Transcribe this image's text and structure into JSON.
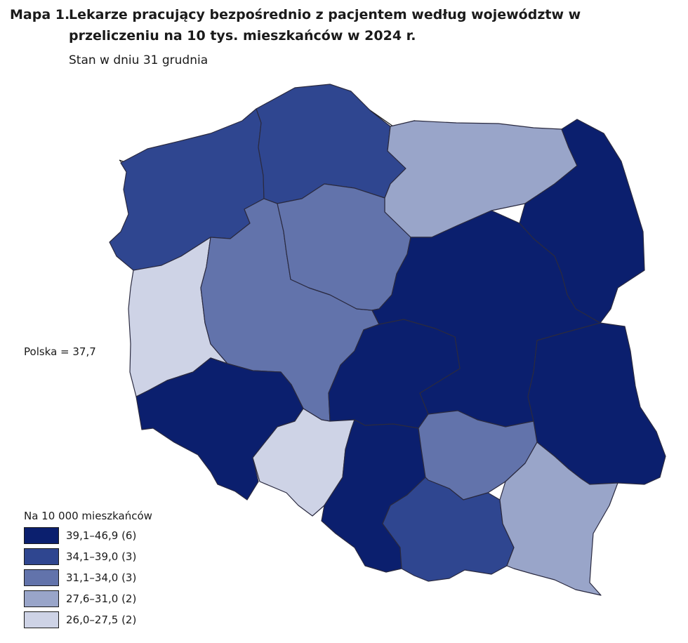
{
  "title": {
    "number": "Mapa 1.",
    "text": "Lekarze pracujący bezpośrednio z pacjentem według województw w przeliczeniu na 10 tys. mieszkańców w 2024 r."
  },
  "subtitle": "Stan w dniu 31 grudnia",
  "poland_label": "Polska = 37,7",
  "legend": {
    "title": "Na 10 000 mieszkańców",
    "items": [
      {
        "label": "39,1–46,9 (6)",
        "color": "#0b1f6e"
      },
      {
        "label": "34,1–39,0 (3)",
        "color": "#2f4690"
      },
      {
        "label": "31,1–34,0 (3)",
        "color": "#6273ab"
      },
      {
        "label": "27,6–31,0 (2)",
        "color": "#99a5c9"
      },
      {
        "label": "26,0–27,5 (2)",
        "color": "#ced3e6"
      }
    ]
  },
  "regions": [
    {
      "id": "zachodniopomorskie",
      "class": 1
    },
    {
      "id": "pomorskie",
      "class": 1
    },
    {
      "id": "warminsko-mazurskie",
      "class": 3
    },
    {
      "id": "podlaskie",
      "class": 0
    },
    {
      "id": "lubuskie",
      "class": 4
    },
    {
      "id": "wielkopolskie",
      "class": 2
    },
    {
      "id": "kujawsko-pomorskie",
      "class": 2
    },
    {
      "id": "mazowieckie",
      "class": 0
    },
    {
      "id": "lodzkie",
      "class": 0
    },
    {
      "id": "lubelskie",
      "class": 0
    },
    {
      "id": "dolnoslaskie",
      "class": 0
    },
    {
      "id": "opolskie",
      "class": 4
    },
    {
      "id": "slaskie",
      "class": 0
    },
    {
      "id": "swietokrzyskie",
      "class": 2
    },
    {
      "id": "malopolskie",
      "class": 1
    },
    {
      "id": "podkarpackie",
      "class": 3
    }
  ]
}
